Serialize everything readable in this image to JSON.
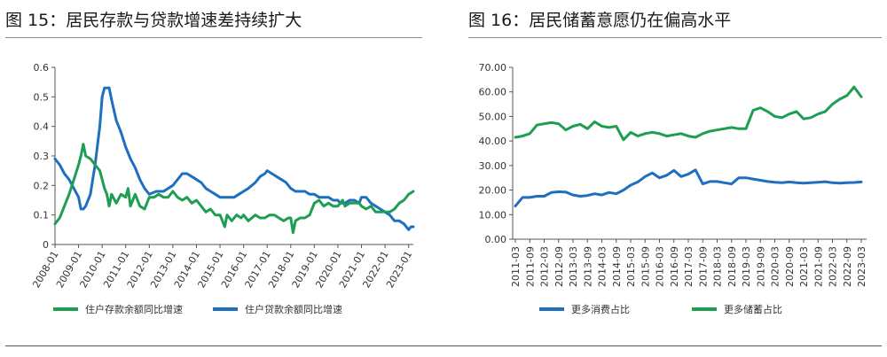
{
  "panels": {
    "left": {
      "title": "图 15：居民存款与贷款增速差持续扩大"
    },
    "right": {
      "title": "图 16：居民储蓄意愿仍在偏高水平"
    }
  },
  "chart_data": [
    {
      "type": "line",
      "ylim": [
        0,
        0.6
      ],
      "y_ticks": [
        "0",
        "0.1",
        "0.2",
        "0.3",
        "0.4",
        "0.5",
        "0.6"
      ],
      "x_ticks": [
        "2008-01",
        "2009-01",
        "2010-01",
        "2011-01",
        "2012-01",
        "2013-01",
        "2014-01",
        "2015-01",
        "2016-01",
        "2017-01",
        "2018-01",
        "2019-01",
        "2020-01",
        "2021-01",
        "2022-01",
        "2023-01"
      ],
      "x_range": [
        2008.0,
        2023.2
      ],
      "grid": false,
      "legend": "bottom",
      "series": [
        {
          "name": "住户存款余额同比增速",
          "color": "#1e9e50",
          "points": [
            [
              2008.0,
              0.07
            ],
            [
              2008.2,
              0.09
            ],
            [
              2008.4,
              0.13
            ],
            [
              2008.6,
              0.17
            ],
            [
              2008.8,
              0.22
            ],
            [
              2009.0,
              0.27
            ],
            [
              2009.1,
              0.3
            ],
            [
              2009.2,
              0.34
            ],
            [
              2009.3,
              0.3
            ],
            [
              2009.5,
              0.29
            ],
            [
              2009.7,
              0.27
            ],
            [
              2009.9,
              0.25
            ],
            [
              2010.0,
              0.22
            ],
            [
              2010.1,
              0.19
            ],
            [
              2010.2,
              0.17
            ],
            [
              2010.3,
              0.13
            ],
            [
              2010.4,
              0.17
            ],
            [
              2010.6,
              0.14
            ],
            [
              2010.8,
              0.17
            ],
            [
              2011.0,
              0.16
            ],
            [
              2011.1,
              0.19
            ],
            [
              2011.2,
              0.13
            ],
            [
              2011.4,
              0.17
            ],
            [
              2011.6,
              0.13
            ],
            [
              2011.8,
              0.12
            ],
            [
              2012.0,
              0.16
            ],
            [
              2012.2,
              0.16
            ],
            [
              2012.4,
              0.17
            ],
            [
              2012.6,
              0.16
            ],
            [
              2012.8,
              0.16
            ],
            [
              2013.0,
              0.18
            ],
            [
              2013.2,
              0.16
            ],
            [
              2013.4,
              0.15
            ],
            [
              2013.6,
              0.16
            ],
            [
              2013.8,
              0.14
            ],
            [
              2014.0,
              0.15
            ],
            [
              2014.2,
              0.13
            ],
            [
              2014.4,
              0.11
            ],
            [
              2014.6,
              0.12
            ],
            [
              2014.8,
              0.1
            ],
            [
              2015.0,
              0.1
            ],
            [
              2015.2,
              0.06
            ],
            [
              2015.3,
              0.1
            ],
            [
              2015.5,
              0.08
            ],
            [
              2015.7,
              0.1
            ],
            [
              2015.9,
              0.09
            ],
            [
              2016.0,
              0.1
            ],
            [
              2016.2,
              0.08
            ],
            [
              2016.5,
              0.1
            ],
            [
              2016.7,
              0.09
            ],
            [
              2016.9,
              0.09
            ],
            [
              2017.1,
              0.1
            ],
            [
              2017.3,
              0.1
            ],
            [
              2017.5,
              0.09
            ],
            [
              2017.7,
              0.08
            ],
            [
              2017.9,
              0.09
            ],
            [
              2018.0,
              0.09
            ],
            [
              2018.1,
              0.04
            ],
            [
              2018.2,
              0.08
            ],
            [
              2018.4,
              0.09
            ],
            [
              2018.6,
              0.09
            ],
            [
              2018.8,
              0.1
            ],
            [
              2019.0,
              0.14
            ],
            [
              2019.2,
              0.15
            ],
            [
              2019.4,
              0.13
            ],
            [
              2019.6,
              0.14
            ],
            [
              2019.8,
              0.13
            ],
            [
              2020.0,
              0.13
            ],
            [
              2020.2,
              0.15
            ],
            [
              2020.3,
              0.13
            ],
            [
              2020.5,
              0.14
            ],
            [
              2020.7,
              0.14
            ],
            [
              2020.9,
              0.14
            ],
            [
              2021.0,
              0.13
            ],
            [
              2021.2,
              0.12
            ],
            [
              2021.4,
              0.13
            ],
            [
              2021.6,
              0.11
            ],
            [
              2021.8,
              0.11
            ],
            [
              2022.0,
              0.11
            ],
            [
              2022.2,
              0.11
            ],
            [
              2022.4,
              0.12
            ],
            [
              2022.6,
              0.14
            ],
            [
              2022.8,
              0.15
            ],
            [
              2023.0,
              0.17
            ],
            [
              2023.2,
              0.18
            ]
          ]
        },
        {
          "name": "住户贷款余额同比增速",
          "color": "#1e6fbf",
          "points": [
            [
              2008.0,
              0.29
            ],
            [
              2008.2,
              0.27
            ],
            [
              2008.4,
              0.24
            ],
            [
              2008.6,
              0.22
            ],
            [
              2008.8,
              0.19
            ],
            [
              2009.0,
              0.16
            ],
            [
              2009.1,
              0.12
            ],
            [
              2009.2,
              0.12
            ],
            [
              2009.3,
              0.13
            ],
            [
              2009.5,
              0.17
            ],
            [
              2009.7,
              0.27
            ],
            [
              2009.9,
              0.4
            ],
            [
              2010.0,
              0.5
            ],
            [
              2010.1,
              0.53
            ],
            [
              2010.2,
              0.53
            ],
            [
              2010.3,
              0.53
            ],
            [
              2010.4,
              0.49
            ],
            [
              2010.6,
              0.42
            ],
            [
              2010.8,
              0.38
            ],
            [
              2011.0,
              0.33
            ],
            [
              2011.2,
              0.29
            ],
            [
              2011.4,
              0.26
            ],
            [
              2011.6,
              0.22
            ],
            [
              2011.8,
              0.19
            ],
            [
              2012.0,
              0.17
            ],
            [
              2012.3,
              0.18
            ],
            [
              2012.6,
              0.18
            ],
            [
              2012.8,
              0.19
            ],
            [
              2013.0,
              0.2
            ],
            [
              2013.2,
              0.22
            ],
            [
              2013.4,
              0.24
            ],
            [
              2013.6,
              0.24
            ],
            [
              2013.8,
              0.23
            ],
            [
              2014.0,
              0.22
            ],
            [
              2014.2,
              0.21
            ],
            [
              2014.4,
              0.19
            ],
            [
              2014.6,
              0.18
            ],
            [
              2014.8,
              0.17
            ],
            [
              2015.0,
              0.16
            ],
            [
              2015.2,
              0.16
            ],
            [
              2015.4,
              0.16
            ],
            [
              2015.6,
              0.16
            ],
            [
              2015.8,
              0.17
            ],
            [
              2016.0,
              0.18
            ],
            [
              2016.2,
              0.19
            ],
            [
              2016.5,
              0.21
            ],
            [
              2016.7,
              0.23
            ],
            [
              2016.9,
              0.24
            ],
            [
              2017.0,
              0.25
            ],
            [
              2017.2,
              0.24
            ],
            [
              2017.4,
              0.23
            ],
            [
              2017.6,
              0.22
            ],
            [
              2017.8,
              0.21
            ],
            [
              2018.0,
              0.19
            ],
            [
              2018.2,
              0.18
            ],
            [
              2018.4,
              0.18
            ],
            [
              2018.6,
              0.18
            ],
            [
              2018.8,
              0.17
            ],
            [
              2019.0,
              0.17
            ],
            [
              2019.2,
              0.16
            ],
            [
              2019.4,
              0.16
            ],
            [
              2019.6,
              0.16
            ],
            [
              2019.8,
              0.15
            ],
            [
              2020.0,
              0.15
            ],
            [
              2020.1,
              0.14
            ],
            [
              2020.3,
              0.14
            ],
            [
              2020.5,
              0.15
            ],
            [
              2020.7,
              0.15
            ],
            [
              2020.9,
              0.14
            ],
            [
              2021.0,
              0.16
            ],
            [
              2021.2,
              0.16
            ],
            [
              2021.4,
              0.14
            ],
            [
              2021.6,
              0.13
            ],
            [
              2021.8,
              0.12
            ],
            [
              2022.0,
              0.11
            ],
            [
              2022.2,
              0.1
            ],
            [
              2022.4,
              0.08
            ],
            [
              2022.6,
              0.08
            ],
            [
              2022.8,
              0.07
            ],
            [
              2023.0,
              0.05
            ],
            [
              2023.1,
              0.06
            ],
            [
              2023.2,
              0.06
            ]
          ]
        }
      ]
    },
    {
      "type": "line",
      "ylim": [
        0,
        70
      ],
      "y_ticks": [
        "0.00",
        "10.00",
        "20.00",
        "30.00",
        "40.00",
        "50.00",
        "60.00",
        "70.00"
      ],
      "x_ticks": [
        "2011-03",
        "2011-09",
        "2012-03",
        "2012-09",
        "2013-03",
        "2013-09",
        "2014-03",
        "2014-09",
        "2015-03",
        "2015-09",
        "2016-03",
        "2016-09",
        "2017-03",
        "2017-09",
        "2018-03",
        "2018-09",
        "2019-03",
        "2019-09",
        "2020-03",
        "2020-09",
        "2021-03",
        "2021-09",
        "2022-03",
        "2022-09",
        "2023-03"
      ],
      "grid": false,
      "legend": "bottom",
      "series": [
        {
          "name": "更多消费占比",
          "color": "#1e6fbf",
          "values": [
            13.5,
            17.0,
            17.0,
            17.5,
            17.5,
            19.0,
            19.3,
            19.2,
            18.0,
            17.5,
            17.8,
            18.5,
            18.0,
            19.0,
            18.5,
            20.0,
            22.0,
            23.3,
            25.5,
            27.0,
            25.0,
            26.0,
            28.0,
            25.5,
            26.5,
            28.2,
            22.5,
            23.5,
            23.5,
            23.0,
            22.5,
            25.0,
            25.0,
            24.5,
            24.0,
            23.5,
            23.2,
            23.0,
            23.3,
            23.0,
            22.8,
            23.0,
            23.2,
            23.4,
            23.0,
            22.8,
            23.0,
            23.1,
            23.3
          ]
        },
        {
          "name": "更多储蓄占比",
          "color": "#1e9e50",
          "values": [
            41.5,
            42.0,
            43.0,
            46.5,
            47.0,
            47.5,
            47.0,
            44.5,
            46.0,
            46.8,
            45.0,
            47.8,
            46.0,
            45.5,
            46.0,
            40.5,
            43.5,
            42.0,
            43.0,
            43.5,
            43.0,
            42.0,
            42.5,
            43.0,
            42.0,
            41.5,
            43.0,
            44.0,
            44.5,
            45.0,
            45.5,
            45.0,
            45.0,
            52.5,
            53.5,
            52.0,
            50.0,
            49.5,
            51.0,
            52.0,
            49.0,
            49.5,
            51.0,
            52.0,
            55.0,
            57.0,
            58.5,
            62.0,
            58.0
          ]
        }
      ]
    }
  ]
}
